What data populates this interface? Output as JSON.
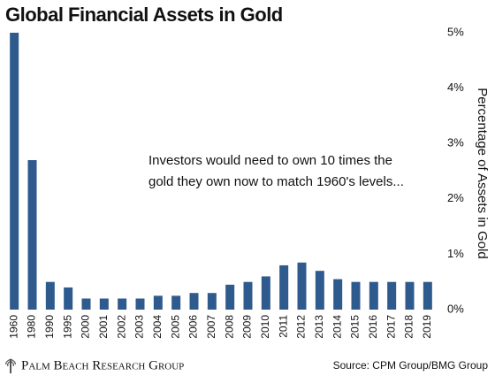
{
  "chart_data": {
    "type": "bar",
    "title": "Global Financial Assets in Gold",
    "annotation": [
      "Investors would need to own 10 times the",
      "gold they own now to match 1960's levels..."
    ],
    "y_axis_label": "Percentage of Assets in Gold",
    "categories": [
      "1960",
      "1980",
      "1990",
      "1995",
      "2000",
      "2001",
      "2002",
      "2003",
      "2004",
      "2005",
      "2006",
      "2007",
      "2008",
      "2009",
      "2010",
      "2011",
      "2012",
      "2013",
      "2014",
      "2015",
      "2016",
      "2017",
      "2018",
      "2019"
    ],
    "values": [
      5,
      2.7,
      0.5,
      0.4,
      0.2,
      0.2,
      0.2,
      0.2,
      0.25,
      0.25,
      0.3,
      0.3,
      0.45,
      0.5,
      0.6,
      0.8,
      0.85,
      0.7,
      0.55,
      0.5,
      0.5,
      0.5,
      0.5,
      0.5
    ],
    "color": "#2e5a8e",
    "ylim": [
      0,
      5
    ],
    "yticks": [
      {
        "value": 0,
        "label": "0%"
      },
      {
        "value": 1,
        "label": "1%"
      },
      {
        "value": 2,
        "label": "2%"
      },
      {
        "value": 3,
        "label": "3%"
      },
      {
        "value": 4,
        "label": "4%"
      },
      {
        "value": 5,
        "label": "5%"
      }
    ],
    "y_axis_side": "right",
    "grid": false,
    "footer_logo": "Palm Beach Research Group",
    "source": "Source: CPM Group/BMG Group"
  }
}
